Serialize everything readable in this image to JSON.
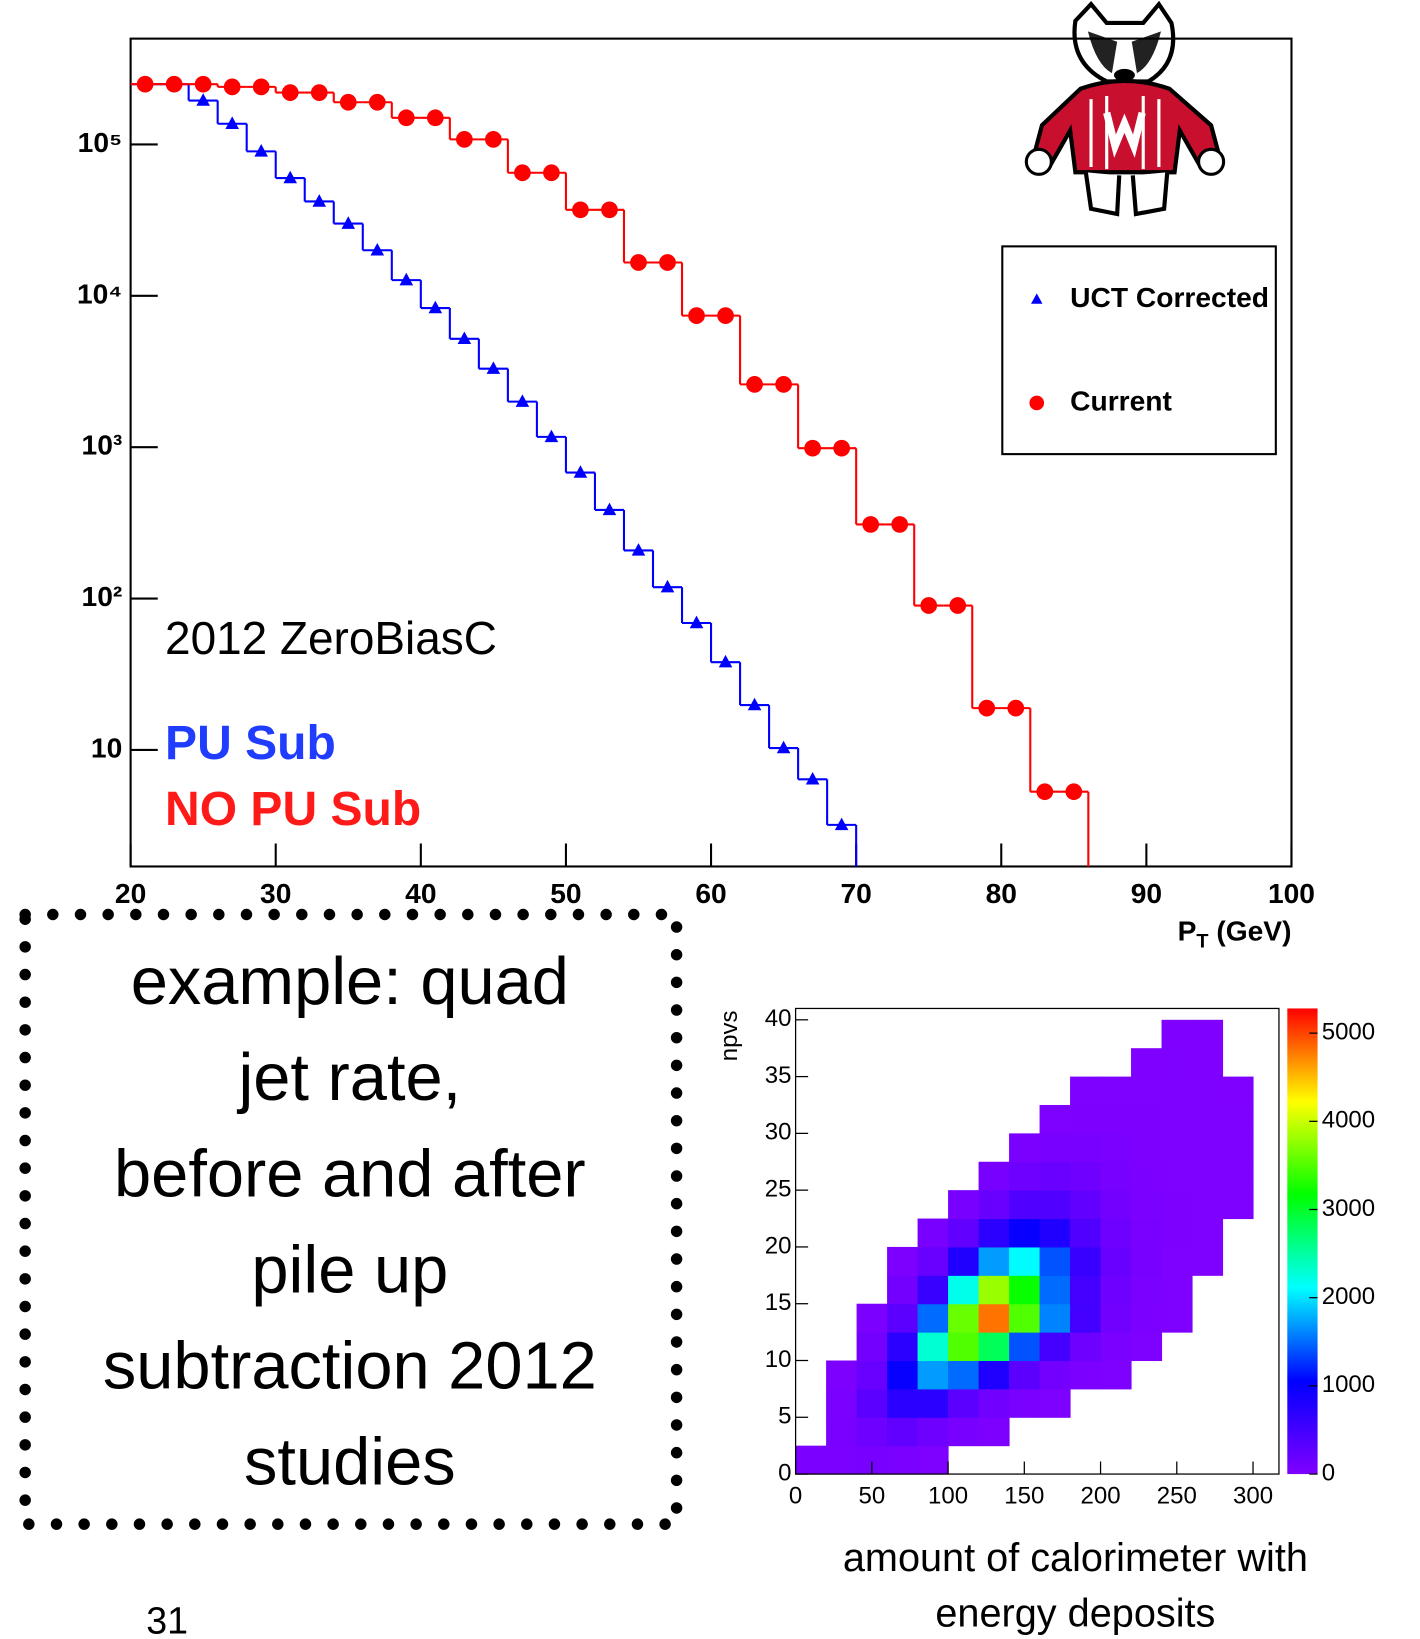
{
  "chart_data": [
    {
      "type": "histogram",
      "xlabel": [
        "P",
        "T",
        " (GeV)"
      ],
      "xlim": [
        20,
        100
      ],
      "xticks": [
        20,
        30,
        40,
        50,
        60,
        70,
        80,
        90,
        100
      ],
      "ylim": [
        1.7,
        500000
      ],
      "log_y": true,
      "yticks": [
        10,
        {
          "value": 100,
          "label": "10²"
        },
        {
          "value": 1000,
          "label": "10³"
        },
        {
          "value": 10000,
          "label": "10⁴"
        },
        {
          "value": 100000,
          "label": "10⁵"
        }
      ],
      "legend": "right",
      "series": [
        {
          "name": "UCT Corrected",
          "color": "#0000ff",
          "marker": "triangle",
          "bins": [
            20,
            22,
            24,
            26,
            28,
            30,
            32,
            34,
            36,
            38,
            40,
            42,
            44,
            46,
            48,
            50,
            52,
            54,
            56,
            58,
            60,
            62,
            64,
            66,
            68,
            70
          ],
          "values": [
            250000,
            250000,
            195000,
            137000,
            90000,
            60000,
            42000,
            30000,
            20000,
            12700,
            8300,
            5200,
            3300,
            2000,
            1170,
            680,
            385,
            208,
            119,
            69,
            38,
            19.8,
            10.3,
            6.4,
            3.2
          ]
        },
        {
          "name": "Current",
          "color": "#ff0000",
          "marker": "circle",
          "bins": [
            20,
            22,
            24,
            26,
            28,
            30,
            32,
            34,
            36,
            38,
            40,
            42,
            44,
            46,
            48,
            50,
            52,
            54,
            56,
            58,
            60,
            62,
            64,
            66,
            68,
            70,
            72,
            74,
            76,
            78,
            80,
            82,
            84,
            86
          ],
          "values": [
            250000,
            250000,
            250000,
            240000,
            240000,
            220000,
            220000,
            190000,
            190000,
            150000,
            150000,
            108000,
            108000,
            65000,
            65000,
            37000,
            37000,
            16600,
            16600,
            7400,
            7400,
            2600,
            2600,
            985,
            985,
            309,
            309,
            90,
            90,
            18.9,
            18.9,
            5.3,
            5.3
          ]
        }
      ],
      "annotations": [
        {
          "text": "2012 ZeroBiasC",
          "color": "#000000"
        },
        {
          "text": "PU Sub",
          "color": "#1f3cff"
        },
        {
          "text": "NO PU Sub",
          "color": "#ff1a1a"
        }
      ]
    },
    {
      "type": "heatmap",
      "xlabel": [
        "amount of calorimeter with",
        "energy deposits"
      ],
      "ylabel": "npvs",
      "xlim": [
        0,
        317
      ],
      "xticks": [
        0,
        50,
        100,
        150,
        200,
        250,
        300
      ],
      "ylim": [
        0,
        41
      ],
      "yticks": [
        0,
        5,
        10,
        15,
        20,
        25,
        30,
        35,
        40
      ],
      "zlim": [
        0,
        5280
      ],
      "zticks": [
        0,
        1000,
        2000,
        3000,
        4000,
        5000
      ],
      "colormap": [
        "#7f00ff",
        "#0000ff",
        "#00ffff",
        "#00ff00",
        "#ffff00",
        "#ff0000"
      ],
      "xbins": [
        0,
        20,
        40,
        60,
        80,
        100,
        120,
        140,
        160,
        180,
        200,
        220,
        240,
        260,
        280,
        300
      ],
      "ybins": [
        0,
        2.5,
        5,
        7.5,
        10,
        12.5,
        15,
        17.5,
        20,
        22.5,
        25,
        27.5,
        30,
        32.5,
        35,
        37.5,
        40
      ],
      "z": [
        [
          30,
          40,
          60,
          40,
          10,
          null,
          null,
          null,
          null,
          null,
          null,
          null,
          null,
          null,
          null
        ],
        [
          null,
          50,
          150,
          250,
          150,
          60,
          20,
          null,
          null,
          null,
          null,
          null,
          null,
          null,
          null
        ],
        [
          null,
          40,
          300,
          700,
          700,
          300,
          120,
          40,
          10,
          null,
          null,
          null,
          null,
          null,
          null
        ],
        [
          null,
          20,
          200,
          1000,
          1700,
          1500,
          800,
          300,
          100,
          30,
          10,
          null,
          null,
          null,
          null
        ],
        [
          null,
          null,
          100,
          700,
          2300,
          3500,
          2800,
          1400,
          500,
          150,
          40,
          10,
          null,
          null,
          null
        ],
        [
          null,
          null,
          30,
          300,
          1500,
          3600,
          4800,
          3500,
          1600,
          500,
          120,
          30,
          10,
          null,
          null
        ],
        [
          null,
          null,
          null,
          100,
          600,
          2200,
          3800,
          3200,
          1500,
          500,
          150,
          40,
          10,
          null,
          null
        ],
        [
          null,
          null,
          null,
          20,
          200,
          800,
          1700,
          2100,
          1400,
          600,
          200,
          60,
          10,
          5,
          null
        ],
        [
          null,
          null,
          null,
          null,
          60,
          250,
          700,
          1000,
          800,
          400,
          150,
          50,
          15,
          5,
          null
        ],
        [
          null,
          null,
          null,
          null,
          null,
          60,
          200,
          400,
          400,
          250,
          100,
          40,
          15,
          5,
          5
        ],
        [
          null,
          null,
          null,
          null,
          null,
          null,
          60,
          150,
          180,
          130,
          70,
          30,
          10,
          5,
          5
        ],
        [
          null,
          null,
          null,
          null,
          null,
          null,
          null,
          40,
          60,
          60,
          40,
          20,
          10,
          5,
          5
        ],
        [
          null,
          null,
          null,
          null,
          null,
          null,
          null,
          null,
          10,
          20,
          20,
          15,
          10,
          5,
          5
        ],
        [
          null,
          null,
          null,
          null,
          null,
          null,
          null,
          null,
          null,
          5,
          10,
          8,
          5,
          5,
          3
        ],
        [
          null,
          null,
          null,
          null,
          null,
          null,
          null,
          null,
          null,
          null,
          null,
          3,
          5,
          3,
          null
        ],
        [
          null,
          null,
          null,
          null,
          null,
          null,
          null,
          null,
          null,
          null,
          null,
          null,
          2,
          2,
          null
        ]
      ]
    }
  ],
  "note": [
    "example: quad",
    "jet rate,",
    "before and after",
    "pile up",
    "subtraction 2012",
    "studies"
  ],
  "page_number": "31"
}
